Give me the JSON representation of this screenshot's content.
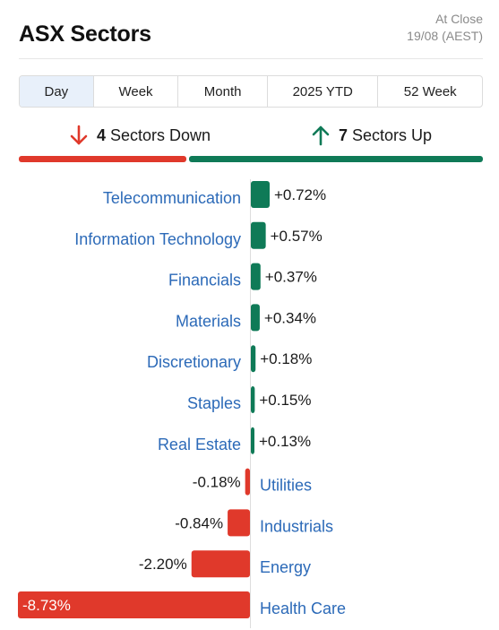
{
  "header": {
    "title": "ASX Sectors",
    "as_of_line1": "At Close",
    "as_of_line2": "19/08 (AEST)"
  },
  "tabs": [
    {
      "label": "Day",
      "active": true
    },
    {
      "label": "Week",
      "active": false
    },
    {
      "label": "Month",
      "active": false
    },
    {
      "label": "2025 YTD",
      "active": false
    },
    {
      "label": "52 Week",
      "active": false
    }
  ],
  "summary": {
    "down_count": "4",
    "down_label": "Sectors Down",
    "up_count": "7",
    "up_label": "Sectors Up"
  },
  "colors": {
    "up": "#0f7a57",
    "down": "#e0392b",
    "label": "#2c6ab8"
  },
  "chart_data": {
    "type": "bar",
    "orientation": "horizontal-diverging",
    "unit": "%",
    "categories": [
      "Telecommunication",
      "Information Technology",
      "Financials",
      "Materials",
      "Discretionary",
      "Staples",
      "Real Estate",
      "Utilities",
      "Industrials",
      "Energy",
      "Health Care"
    ],
    "values": [
      0.72,
      0.57,
      0.37,
      0.34,
      0.18,
      0.15,
      0.13,
      -0.18,
      -0.84,
      -2.2,
      -8.73
    ],
    "value_labels": [
      "+0.72%",
      "+0.57%",
      "+0.37%",
      "+0.34%",
      "+0.18%",
      "+0.15%",
      "+0.13%",
      "-0.18%",
      "-0.84%",
      "-2.20%",
      "-8.73%"
    ]
  }
}
